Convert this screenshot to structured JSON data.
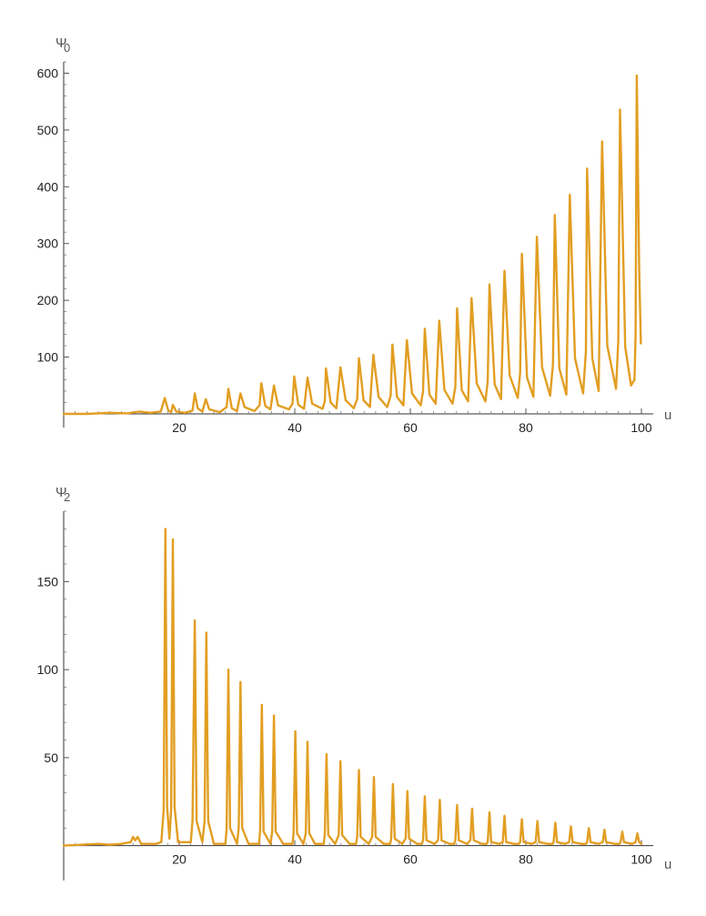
{
  "colors": {
    "series": "#E29E22",
    "axis": "#333333"
  },
  "chart_data": [
    {
      "type": "line",
      "title": "",
      "ylabel": "Ψ",
      "ylabel_sub": "0",
      "xlabel": "u",
      "xlim": [
        0,
        100
      ],
      "ylim": [
        0,
        620
      ],
      "x_ticks": [
        20,
        40,
        60,
        80,
        100
      ],
      "y_ticks": [
        100,
        200,
        300,
        400,
        500,
        600
      ],
      "x_tick_labels": [
        "20",
        "40",
        "60",
        "80",
        "100"
      ],
      "y_tick_labels": [
        "100",
        "200",
        "300",
        "400",
        "500",
        "600"
      ],
      "grid": false,
      "series": [
        {
          "points": [
            [
              0,
              0
            ],
            [
              4,
              0
            ],
            [
              8,
              2
            ],
            [
              11,
              1
            ],
            [
              13,
              4
            ],
            [
              15,
              2
            ],
            [
              16.8,
              4
            ],
            [
              17.5,
              28
            ],
            [
              18.1,
              6
            ],
            [
              18.6,
              3
            ],
            [
              18.9,
              16
            ],
            [
              19.5,
              4
            ],
            [
              21,
              2
            ],
            [
              22.3,
              6
            ],
            [
              22.7,
              36
            ],
            [
              23.2,
              10
            ],
            [
              24,
              4
            ],
            [
              24.6,
              26
            ],
            [
              25.2,
              8
            ],
            [
              27,
              3
            ],
            [
              28.2,
              12
            ],
            [
              28.5,
              44
            ],
            [
              29.1,
              10
            ],
            [
              30,
              5
            ],
            [
              30.6,
              36
            ],
            [
              31.3,
              12
            ],
            [
              33,
              5
            ],
            [
              33.9,
              15
            ],
            [
              34.2,
              54
            ],
            [
              34.9,
              14
            ],
            [
              35.8,
              8
            ],
            [
              36.4,
              50
            ],
            [
              37.1,
              15
            ],
            [
              39,
              8
            ],
            [
              39.6,
              18
            ],
            [
              39.9,
              66
            ],
            [
              40.6,
              16
            ],
            [
              41.6,
              9
            ],
            [
              42.2,
              64
            ],
            [
              43,
              18
            ],
            [
              44.8,
              9
            ],
            [
              45.2,
              22
            ],
            [
              45.4,
              80
            ],
            [
              46.2,
              20
            ],
            [
              47.2,
              10
            ],
            [
              47.9,
              82
            ],
            [
              48.8,
              24
            ],
            [
              50.2,
              10
            ],
            [
              50.8,
              26
            ],
            [
              51.1,
              98
            ],
            [
              51.9,
              24
            ],
            [
              53,
              12
            ],
            [
              53.6,
              104
            ],
            [
              54.5,
              30
            ],
            [
              56,
              12
            ],
            [
              56.6,
              32
            ],
            [
              56.9,
              122
            ],
            [
              57.7,
              30
            ],
            [
              58.8,
              15
            ],
            [
              59.4,
              130
            ],
            [
              60.3,
              36
            ],
            [
              61.8,
              15
            ],
            [
              62.2,
              40
            ],
            [
              62.5,
              150
            ],
            [
              63.3,
              34
            ],
            [
              64.4,
              18
            ],
            [
              65,
              164
            ],
            [
              65.9,
              42
            ],
            [
              67.3,
              18
            ],
            [
              67.8,
              48
            ],
            [
              68.1,
              186
            ],
            [
              68.9,
              42
            ],
            [
              70,
              22
            ],
            [
              70.6,
              204
            ],
            [
              71.5,
              54
            ],
            [
              73,
              22
            ],
            [
              73.4,
              58
            ],
            [
              73.7,
              228
            ],
            [
              74.6,
              52
            ],
            [
              75.7,
              26
            ],
            [
              76.3,
              252
            ],
            [
              77.2,
              68
            ],
            [
              78.6,
              28
            ],
            [
              79,
              72
            ],
            [
              79.3,
              282
            ],
            [
              80.2,
              64
            ],
            [
              81.3,
              30
            ],
            [
              81.9,
              312
            ],
            [
              82.8,
              82
            ],
            [
              84.2,
              32
            ],
            [
              84.7,
              88
            ],
            [
              85,
              350
            ],
            [
              85.8,
              80
            ],
            [
              87,
              34
            ],
            [
              87.6,
              386
            ],
            [
              88.5,
              98
            ],
            [
              89.9,
              36
            ],
            [
              90.4,
              110
            ],
            [
              90.6,
              432
            ],
            [
              91.5,
              98
            ],
            [
              92.6,
              40
            ],
            [
              93.2,
              480
            ],
            [
              94.1,
              120
            ],
            [
              95.6,
              44
            ],
            [
              96,
              130
            ],
            [
              96.3,
              536
            ],
            [
              97.2,
              118
            ],
            [
              98.2,
              50
            ],
            [
              98.8,
              60
            ],
            [
              99,
              140
            ],
            [
              99.2,
              596
            ],
            [
              99.6,
              260
            ],
            [
              99.9,
              124
            ]
          ]
        }
      ]
    },
    {
      "type": "line",
      "title": "",
      "ylabel": "Ψ",
      "ylabel_sub": "2",
      "xlabel": "u",
      "xlim": [
        0,
        100
      ],
      "ylim": [
        -10,
        190
      ],
      "x_ticks": [
        20,
        40,
        60,
        80,
        100
      ],
      "y_ticks": [
        50,
        100,
        150
      ],
      "x_tick_labels": [
        "20",
        "40",
        "60",
        "80",
        "100"
      ],
      "y_tick_labels": [
        "50",
        "100",
        "150"
      ],
      "grid": false,
      "series": [
        {
          "points": [
            [
              0,
              0
            ],
            [
              3,
              0.5
            ],
            [
              6,
              1
            ],
            [
              8,
              0.5
            ],
            [
              10,
              1
            ],
            [
              11.6,
              2
            ],
            [
              12,
              5
            ],
            [
              12.4,
              3
            ],
            [
              12.8,
              5
            ],
            [
              13.4,
              1
            ],
            [
              16,
              1
            ],
            [
              16.9,
              2
            ],
            [
              17.3,
              20
            ],
            [
              17.6,
              180
            ],
            [
              17.9,
              22
            ],
            [
              18.3,
              4
            ],
            [
              18.6,
              20
            ],
            [
              18.9,
              174
            ],
            [
              19.2,
              22
            ],
            [
              19.8,
              2
            ],
            [
              22,
              2
            ],
            [
              22.3,
              14
            ],
            [
              22.7,
              128
            ],
            [
              23,
              14
            ],
            [
              24,
              2
            ],
            [
              24.4,
              14
            ],
            [
              24.7,
              121
            ],
            [
              25,
              14
            ],
            [
              26,
              1
            ],
            [
              28,
              1
            ],
            [
              28.2,
              10
            ],
            [
              28.5,
              100
            ],
            [
              28.8,
              10
            ],
            [
              30,
              1
            ],
            [
              30.3,
              10
            ],
            [
              30.6,
              93
            ],
            [
              30.9,
              10
            ],
            [
              32,
              1
            ],
            [
              33.8,
              1
            ],
            [
              34,
              8
            ],
            [
              34.3,
              80
            ],
            [
              34.6,
              8
            ],
            [
              35.8,
              1
            ],
            [
              36.1,
              8
            ],
            [
              36.4,
              74
            ],
            [
              36.7,
              8
            ],
            [
              38,
              1
            ],
            [
              39.6,
              1
            ],
            [
              39.8,
              7
            ],
            [
              40.1,
              65
            ],
            [
              40.4,
              7
            ],
            [
              41.5,
              1
            ],
            [
              41.9,
              7
            ],
            [
              42.2,
              59
            ],
            [
              42.5,
              7
            ],
            [
              43.5,
              1
            ],
            [
              45,
              1
            ],
            [
              45.2,
              6
            ],
            [
              45.5,
              52
            ],
            [
              45.8,
              6
            ],
            [
              47,
              1
            ],
            [
              47.6,
              6
            ],
            [
              47.9,
              48
            ],
            [
              48.2,
              6
            ],
            [
              49.5,
              1
            ],
            [
              50.6,
              1
            ],
            [
              50.8,
              5
            ],
            [
              51.1,
              43
            ],
            [
              51.4,
              5
            ],
            [
              52.8,
              1
            ],
            [
              53.4,
              5
            ],
            [
              53.7,
              39
            ],
            [
              54,
              5
            ],
            [
              55.4,
              1
            ],
            [
              56.5,
              1
            ],
            [
              56.7,
              4
            ],
            [
              57,
              35
            ],
            [
              57.3,
              4
            ],
            [
              58.6,
              1
            ],
            [
              59.2,
              4
            ],
            [
              59.5,
              31
            ],
            [
              59.8,
              4
            ],
            [
              61.2,
              1
            ],
            [
              62,
              1
            ],
            [
              62.2,
              3
            ],
            [
              62.5,
              28
            ],
            [
              62.8,
              3
            ],
            [
              64.2,
              1
            ],
            [
              64.8,
              3
            ],
            [
              65.1,
              26
            ],
            [
              65.4,
              3
            ],
            [
              66.8,
              1
            ],
            [
              67.6,
              1
            ],
            [
              67.8,
              3
            ],
            [
              68.1,
              23
            ],
            [
              68.4,
              3
            ],
            [
              69.8,
              1
            ],
            [
              70.4,
              3
            ],
            [
              70.7,
              21
            ],
            [
              71,
              3
            ],
            [
              72.4,
              1
            ],
            [
              73.2,
              1
            ],
            [
              73.4,
              2
            ],
            [
              73.7,
              19
            ],
            [
              74,
              2
            ],
            [
              75.4,
              1
            ],
            [
              76,
              2
            ],
            [
              76.3,
              17
            ],
            [
              76.6,
              2
            ],
            [
              78,
              1
            ],
            [
              78.8,
              1
            ],
            [
              79,
              2
            ],
            [
              79.3,
              15
            ],
            [
              79.6,
              2
            ],
            [
              81,
              1
            ],
            [
              81.7,
              2
            ],
            [
              82,
              14
            ],
            [
              82.3,
              2
            ],
            [
              83.8,
              1
            ],
            [
              84.6,
              1
            ],
            [
              84.8,
              2
            ],
            [
              85.1,
              13
            ],
            [
              85.4,
              2
            ],
            [
              86.8,
              1
            ],
            [
              87.5,
              2
            ],
            [
              87.8,
              11
            ],
            [
              88.1,
              2
            ],
            [
              89.6,
              1
            ],
            [
              90.4,
              1
            ],
            [
              90.6,
              2
            ],
            [
              90.9,
              10
            ],
            [
              91.2,
              2
            ],
            [
              92.6,
              1
            ],
            [
              93.3,
              2
            ],
            [
              93.6,
              9
            ],
            [
              93.9,
              2
            ],
            [
              95.4,
              1
            ],
            [
              96.2,
              1
            ],
            [
              96.4,
              2
            ],
            [
              96.7,
              8
            ],
            [
              97,
              2
            ],
            [
              98.4,
              1
            ],
            [
              99,
              2
            ],
            [
              99.3,
              7
            ],
            [
              99.6,
              2
            ],
            [
              100,
              1
            ]
          ]
        }
      ]
    }
  ]
}
